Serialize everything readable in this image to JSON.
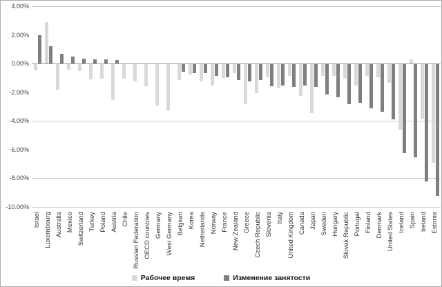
{
  "colors": {
    "working_time": "#d9d9d9",
    "employment_change": "#7f7f7f",
    "grid": "#cccccc",
    "zero_axis": "#9b9b9b",
    "label_text": "#333333"
  },
  "chart_data": {
    "type": "bar",
    "title": "",
    "xlabel": "",
    "ylabel": "",
    "ylim": [
      -10,
      4
    ],
    "ytick_step": 2,
    "ytick_values": [
      4,
      2,
      0,
      -2,
      -4,
      -6,
      -8,
      -10
    ],
    "ytick_labels": [
      "4.00%",
      "2.00%",
      "0.00%",
      "-2.00%",
      "-4.00%",
      "-6.00%",
      "-8.00%",
      "-10.00%"
    ],
    "gridline_values": [
      4,
      0,
      -4,
      -8,
      -10
    ],
    "grid": "partial",
    "legend_position": "bottom",
    "categories": [
      "Israel",
      "Luxembourg",
      "Australia",
      "Mexico",
      "Switzerland",
      "Turkey",
      "Poland",
      "Austria",
      "Chile",
      "Russian Federation",
      "OECD countries",
      "Germany",
      "West Germany",
      "Belgium",
      "Korea",
      "Netherlands",
      "Norway",
      "France",
      "New Zealand",
      "Greece",
      "Czech Republic",
      "Slovenia",
      "Italy",
      "United Kingdom",
      "Canada",
      "Japan",
      "Sweden",
      "Hungary",
      "Slovak Republic",
      "Portugal",
      "Finland",
      "Denmark",
      "United States",
      "Iceland",
      "Spain",
      "Ireland",
      "Estonia"
    ],
    "series": [
      {
        "name": "Рабочее время",
        "key": "working_time",
        "values": [
          -0.45,
          2.9,
          -1.8,
          -0.4,
          -0.5,
          -1.05,
          -1.0,
          -2.5,
          -1.0,
          -1.2,
          -1.55,
          -2.9,
          -3.2,
          -1.1,
          -0.7,
          -1.2,
          -1.5,
          -0.95,
          -0.6,
          -2.8,
          -2.0,
          -0.9,
          -1.7,
          -0.8,
          -2.2,
          -3.4,
          -0.8,
          -0.8,
          -1.0,
          -1.5,
          -0.8,
          -0.9,
          -1.3,
          -4.55,
          0.3,
          -3.8,
          -6.9
        ]
      },
      {
        "name": "Изменение занятости",
        "key": "employment_change",
        "values": [
          2.0,
          1.2,
          0.7,
          0.5,
          0.35,
          0.3,
          0.3,
          0.25,
          null,
          null,
          null,
          null,
          null,
          -0.55,
          -0.6,
          -0.6,
          -0.8,
          -0.9,
          -1.1,
          -1.2,
          -1.1,
          -1.55,
          -1.5,
          -1.6,
          -1.5,
          -1.6,
          -2.1,
          -2.3,
          -2.8,
          -2.7,
          -3.1,
          -3.3,
          -3.85,
          -6.2,
          -6.5,
          -8.2,
          -9.2
        ]
      }
    ]
  }
}
